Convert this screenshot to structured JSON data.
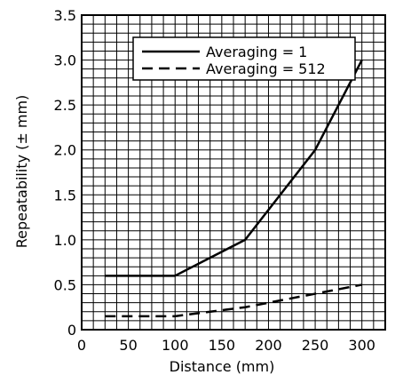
{
  "chart_data": {
    "type": "line",
    "xlabel": "Distance (mm)",
    "ylabel": "Repeatability (± mm)",
    "xlim": [
      0,
      325
    ],
    "ylim": [
      0,
      3.5
    ],
    "x_ticks": [
      "0",
      "50",
      "100",
      "150",
      "200",
      "250",
      "300"
    ],
    "y_ticks": [
      "0",
      "0.5",
      "1.0",
      "1.5",
      "2.0",
      "2.5",
      "3.0",
      "3.5"
    ],
    "grid": true,
    "legend_position": "top-right",
    "series": [
      {
        "name": "Averaging = 1",
        "style": "solid",
        "x": [
          25,
          100,
          175,
          250,
          300
        ],
        "y": [
          0.6,
          0.6,
          1.0,
          2.0,
          3.0
        ]
      },
      {
        "name": "Averaging = 512",
        "style": "dashed",
        "x": [
          25,
          100,
          175,
          250,
          300
        ],
        "y": [
          0.15,
          0.15,
          0.25,
          0.4,
          0.5
        ]
      }
    ],
    "colors": {
      "line": "#000000",
      "grid": "#000000",
      "background": "#ffffff"
    }
  }
}
